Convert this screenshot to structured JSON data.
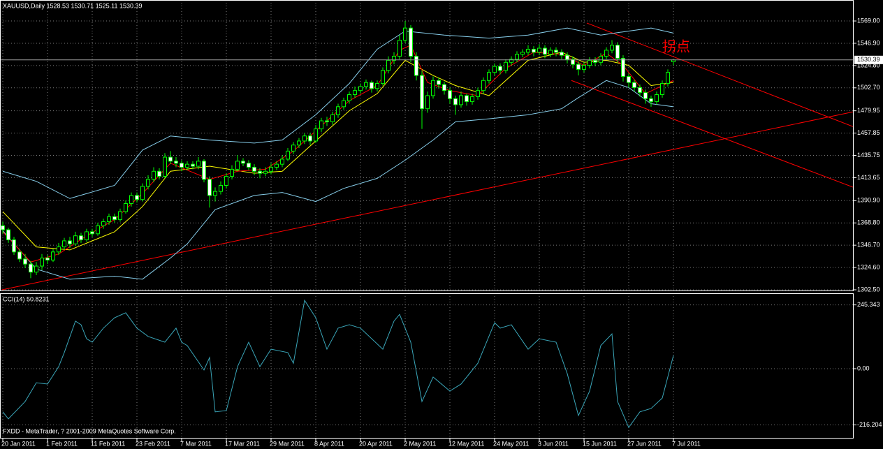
{
  "chart_data": [
    {
      "type": "candlestick",
      "title": "XAUUSD,Daily  1528.53 1530.71 1525.11 1530.39",
      "annotation": "拐点",
      "categories": [
        "20 Jan 2011",
        null,
        null,
        null,
        null,
        null,
        null,
        null,
        "1 Feb 2011",
        null,
        null,
        null,
        null,
        null,
        null,
        null,
        "11 Feb 2011",
        null,
        null,
        null,
        null,
        null,
        null,
        null,
        "23 Feb 2011",
        null,
        null,
        null,
        null,
        null,
        null,
        null,
        "7 Mar 2011",
        null,
        null,
        null,
        null,
        null,
        null,
        null,
        "17 Mar 2011",
        null,
        null,
        null,
        null,
        null,
        null,
        null,
        "29 Mar 2011",
        null,
        null,
        null,
        null,
        null,
        null,
        null,
        "8 Apr 2011",
        null,
        null,
        null,
        null,
        null,
        null,
        null,
        "20 Apr 2011",
        null,
        null,
        null,
        null,
        null,
        null,
        null,
        "2 May 2011",
        null,
        null,
        null,
        null,
        null,
        null,
        null,
        "12 May 2011",
        null,
        null,
        null,
        null,
        null,
        null,
        null,
        "24 May 2011",
        null,
        null,
        null,
        null,
        null,
        null,
        null,
        "3 Jun 2011",
        null,
        null,
        null,
        null,
        null,
        null,
        null,
        "15 Jun 2011",
        null,
        null,
        null,
        null,
        null,
        null,
        null,
        "27 Jun 2011",
        null,
        null,
        null,
        null,
        null,
        null,
        null,
        "7 Jul 2011"
      ],
      "ohlc": [
        [
          1366,
          1370,
          1358,
          1362
        ],
        [
          1362,
          1364,
          1349,
          1352
        ],
        [
          1352,
          1355,
          1337,
          1340
        ],
        [
          1340,
          1343,
          1330,
          1333
        ],
        [
          1333,
          1338,
          1324,
          1328
        ],
        [
          1328,
          1331,
          1314,
          1320
        ],
        [
          1320,
          1330,
          1317,
          1326
        ],
        [
          1326,
          1338,
          1322,
          1334
        ],
        [
          1334,
          1337,
          1328,
          1332
        ],
        [
          1332,
          1343,
          1330,
          1340
        ],
        [
          1340,
          1349,
          1337,
          1345
        ],
        [
          1345,
          1354,
          1342,
          1351
        ],
        [
          1351,
          1355,
          1344,
          1348
        ],
        [
          1348,
          1360,
          1346,
          1356
        ],
        [
          1356,
          1359,
          1349,
          1352
        ],
        [
          1352,
          1363,
          1350,
          1360
        ],
        [
          1360,
          1363,
          1355,
          1358
        ],
        [
          1358,
          1369,
          1356,
          1366
        ],
        [
          1366,
          1373,
          1363,
          1370
        ],
        [
          1370,
          1378,
          1367,
          1375
        ],
        [
          1375,
          1378,
          1369,
          1372
        ],
        [
          1372,
          1383,
          1370,
          1380
        ],
        [
          1380,
          1391,
          1378,
          1388
        ],
        [
          1388,
          1399,
          1385,
          1396
        ],
        [
          1396,
          1399,
          1389,
          1392
        ],
        [
          1392,
          1408,
          1390,
          1405
        ],
        [
          1405,
          1416,
          1402,
          1412
        ],
        [
          1412,
          1424,
          1409,
          1420
        ],
        [
          1420,
          1423,
          1412,
          1415
        ],
        [
          1415,
          1438,
          1413,
          1434
        ],
        [
          1434,
          1440,
          1427,
          1430
        ],
        [
          1430,
          1434,
          1424,
          1428
        ],
        [
          1428,
          1431,
          1420,
          1424
        ],
        [
          1424,
          1430,
          1421,
          1427
        ],
        [
          1427,
          1430,
          1422,
          1425
        ],
        [
          1425,
          1434,
          1422,
          1430
        ],
        [
          1430,
          1432,
          1409,
          1412
        ],
        [
          1412,
          1415,
          1384,
          1396
        ],
        [
          1396,
          1404,
          1390,
          1400
        ],
        [
          1400,
          1410,
          1397,
          1406
        ],
        [
          1406,
          1418,
          1403,
          1415
        ],
        [
          1415,
          1426,
          1412,
          1422
        ],
        [
          1422,
          1436,
          1420,
          1430
        ],
        [
          1430,
          1433,
          1425,
          1428
        ],
        [
          1428,
          1431,
          1421,
          1424
        ],
        [
          1424,
          1427,
          1416,
          1420
        ],
        [
          1420,
          1423,
          1413,
          1418
        ],
        [
          1418,
          1424,
          1415,
          1420
        ],
        [
          1420,
          1428,
          1417,
          1424
        ],
        [
          1424,
          1430,
          1421,
          1427
        ],
        [
          1427,
          1436,
          1424,
          1432
        ],
        [
          1432,
          1443,
          1430,
          1440
        ],
        [
          1440,
          1449,
          1437,
          1446
        ],
        [
          1446,
          1453,
          1443,
          1450
        ],
        [
          1450,
          1458,
          1447,
          1455
        ],
        [
          1455,
          1458,
          1446,
          1450
        ],
        [
          1450,
          1466,
          1448,
          1462
        ],
        [
          1462,
          1473,
          1459,
          1470
        ],
        [
          1470,
          1474,
          1465,
          1469
        ],
        [
          1469,
          1479,
          1466,
          1476
        ],
        [
          1476,
          1487,
          1473,
          1484
        ],
        [
          1484,
          1493,
          1481,
          1490
        ],
        [
          1490,
          1499,
          1487,
          1496
        ],
        [
          1496,
          1504,
          1493,
          1500
        ],
        [
          1500,
          1507,
          1497,
          1504
        ],
        [
          1504,
          1511,
          1501,
          1508
        ],
        [
          1508,
          1510,
          1498,
          1502
        ],
        [
          1502,
          1510,
          1499,
          1507
        ],
        [
          1507,
          1523,
          1505,
          1520
        ],
        [
          1520,
          1534,
          1517,
          1530
        ],
        [
          1530,
          1538,
          1526,
          1534
        ],
        [
          1534,
          1555,
          1531,
          1550
        ],
        [
          1550,
          1569,
          1547,
          1562
        ],
        [
          1562,
          1565,
          1528,
          1534
        ],
        [
          1534,
          1538,
          1510,
          1515
        ],
        [
          1515,
          1520,
          1462,
          1482
        ],
        [
          1482,
          1499,
          1478,
          1495
        ],
        [
          1495,
          1514,
          1492,
          1510
        ],
        [
          1510,
          1513,
          1502,
          1506
        ],
        [
          1506,
          1509,
          1496,
          1500
        ],
        [
          1500,
          1503,
          1487,
          1492
        ],
        [
          1492,
          1495,
          1476,
          1486
        ],
        [
          1486,
          1499,
          1483,
          1495
        ],
        [
          1495,
          1497,
          1485,
          1489
        ],
        [
          1489,
          1497,
          1486,
          1494
        ],
        [
          1494,
          1503,
          1491,
          1500
        ],
        [
          1500,
          1513,
          1497,
          1510
        ],
        [
          1510,
          1521,
          1507,
          1518
        ],
        [
          1518,
          1527,
          1515,
          1524
        ],
        [
          1524,
          1527,
          1516,
          1520
        ],
        [
          1520,
          1531,
          1517,
          1528
        ],
        [
          1528,
          1534,
          1525,
          1531
        ],
        [
          1531,
          1539,
          1528,
          1536
        ],
        [
          1536,
          1541,
          1533,
          1538
        ],
        [
          1538,
          1545,
          1535,
          1541
        ],
        [
          1541,
          1544,
          1534,
          1538
        ],
        [
          1538,
          1546,
          1535,
          1542
        ],
        [
          1542,
          1545,
          1532,
          1536
        ],
        [
          1536,
          1543,
          1533,
          1540
        ],
        [
          1540,
          1543,
          1534,
          1538
        ],
        [
          1538,
          1541,
          1531,
          1535
        ],
        [
          1535,
          1538,
          1527,
          1531
        ],
        [
          1531,
          1534,
          1522,
          1526
        ],
        [
          1526,
          1529,
          1515,
          1521
        ],
        [
          1521,
          1528,
          1518,
          1525
        ],
        [
          1525,
          1533,
          1522,
          1530
        ],
        [
          1530,
          1533,
          1524,
          1528
        ],
        [
          1528,
          1537,
          1525,
          1534
        ],
        [
          1534,
          1543,
          1531,
          1540
        ],
        [
          1540,
          1550,
          1537,
          1545
        ],
        [
          1545,
          1548,
          1528,
          1532
        ],
        [
          1532,
          1535,
          1509,
          1514
        ],
        [
          1514,
          1517,
          1503,
          1508
        ],
        [
          1508,
          1511,
          1499,
          1503
        ],
        [
          1503,
          1506,
          1494,
          1498
        ],
        [
          1498,
          1501,
          1487,
          1492
        ],
        [
          1492,
          1495,
          1484,
          1489
        ],
        [
          1489,
          1499,
          1486,
          1496
        ],
        [
          1496,
          1510,
          1493,
          1507
        ],
        [
          1507,
          1521,
          1504,
          1518
        ],
        [
          1528.53,
          1530.71,
          1525.11,
          1530.39
        ]
      ],
      "up_color": "#000000",
      "down_color": "#ffffff",
      "wick_color": "#00ff00",
      "ylim": [
        1301.1,
        1589.8
      ],
      "yticks": [
        {
          "value": 1569,
          "label": "1569.00"
        },
        {
          "value": 1546.9,
          "label": "1546.90"
        },
        {
          "value": 1524.8,
          "label": "1524.80"
        },
        {
          "value": 1502.7,
          "label": "1502.70"
        },
        1479.95,
        {
          "value": 1457.85,
          "label": "1457.85"
        },
        {
          "value": 1435.75,
          "label": "1435.75"
        },
        {
          "value": 1413.65,
          "label": "1413.65"
        },
        {
          "value": 1390.9,
          "label": "1390.90"
        },
        {
          "value": 1368.8,
          "label": "1368.80"
        },
        {
          "value": 1346.7,
          "label": "1346.70"
        },
        {
          "value": 1324.6,
          "label": "1324.60"
        },
        {
          "value": 1302.5,
          "label": "1302.50"
        }
      ],
      "last_price": 1530.39,
      "grid": true,
      "overlays": [
        {
          "color": "#87ceeb",
          "x": [
            0,
            6,
            12,
            20,
            25,
            30,
            37,
            45,
            50,
            56,
            62,
            67,
            72,
            79,
            87,
            94,
            101,
            107,
            112,
            116,
            120
          ],
          "values": [
            1420,
            1410,
            1393,
            1406,
            1441,
            1455,
            1451,
            1448,
            1451,
            1476,
            1507,
            1541,
            1559,
            1555,
            1552,
            1555,
            1562,
            1555,
            1559,
            1562,
            1557
          ]
        },
        {
          "color": "#87ceeb",
          "x": [
            0,
            6,
            12,
            20,
            25,
            30,
            33,
            38,
            45,
            50,
            56,
            61,
            67,
            72,
            77,
            81,
            87,
            94,
            100,
            103,
            108,
            112,
            116,
            120
          ],
          "values": [
            1361,
            1323,
            1313,
            1316,
            1313,
            1334,
            1348,
            1382,
            1396,
            1399,
            1390,
            1403,
            1413,
            1431,
            1451,
            1469,
            1472,
            1476,
            1482,
            1493,
            1510,
            1503,
            1487,
            1484
          ]
        },
        {
          "color": "#ffff00",
          "x": [
            0,
            6,
            12,
            20,
            25,
            30,
            37,
            45,
            50,
            56,
            62,
            67,
            72,
            77,
            81,
            87,
            94,
            100,
            104,
            108,
            112,
            116,
            120
          ],
          "values": [
            1380,
            1345,
            1342,
            1360,
            1385,
            1420,
            1425,
            1418,
            1420,
            1450,
            1480,
            1497,
            1530,
            1515,
            1505,
            1495,
            1530,
            1538,
            1528,
            1530,
            1525,
            1505,
            1508
          ]
        },
        {
          "color": "#ff0000",
          "x": [
            0,
            5,
            10,
            15,
            20,
            25,
            30,
            37,
            42,
            47,
            52,
            57,
            62,
            67,
            71,
            73,
            76,
            80,
            85,
            90,
            95,
            100,
            104,
            108,
            111,
            115,
            120
          ],
          "values": [
            1360,
            1330,
            1338,
            1356,
            1372,
            1398,
            1428,
            1412,
            1420,
            1422,
            1440,
            1465,
            1490,
            1505,
            1540,
            1545,
            1508,
            1500,
            1495,
            1522,
            1538,
            1536,
            1525,
            1537,
            1525,
            1497,
            1510
          ]
        }
      ],
      "trend_lines": [
        {
          "color": "#ff0000",
          "x": [
            -0.125,
            152.25
          ],
          "values": [
            1302.5,
            1479
          ]
        },
        {
          "color": "#ff0000",
          "x": [
            104.5,
            152.25
          ],
          "values": [
            1567,
            1464
          ]
        },
        {
          "color": "#ff0000",
          "x": [
            101.75,
            152.25
          ],
          "values": [
            1510,
            1404
          ]
        }
      ]
    },
    {
      "type": "line",
      "title": "CCI(14) 50.8231",
      "note": "FXDD - MetaTrader, ? 2001-2009 MetaQuotes Software Corp.",
      "color": "#3aa6b9",
      "x": [
        0,
        1,
        4,
        6,
        8,
        10,
        11,
        13,
        14,
        15,
        16,
        18,
        20,
        22,
        24,
        26,
        29,
        31,
        32,
        33,
        36,
        37,
        38,
        40,
        42,
        44,
        46,
        48,
        51,
        52,
        54,
        56,
        58,
        60,
        62,
        64,
        68,
        70,
        71,
        73,
        75,
        77,
        80,
        82,
        85,
        88,
        89,
        91,
        94,
        96,
        99,
        101,
        103,
        105,
        107,
        109,
        110,
        112,
        114,
        116,
        118,
        120
      ],
      "values": [
        -166,
        -193,
        -126,
        -54,
        -59,
        8,
        62,
        183,
        169,
        115,
        102,
        156,
        196,
        215,
        156,
        124,
        102,
        156,
        102,
        89,
        -5,
        43,
        -166,
        -161,
        8,
        102,
        8,
        75,
        62,
        21,
        263,
        196,
        75,
        156,
        169,
        156,
        75,
        183,
        209,
        102,
        -126,
        -32,
        -86,
        -59,
        21,
        177,
        156,
        169,
        75,
        115,
        102,
        -19,
        -180,
        -86,
        89,
        134,
        -126,
        -226,
        -166,
        -153,
        -113,
        50.8231
      ],
      "ylim": [
        -268.5,
        290
      ],
      "yticks": [
        245.343,
        {
          "value": 0,
          "label": "0.00"
        },
        -216.204
      ],
      "grid": true
    }
  ]
}
